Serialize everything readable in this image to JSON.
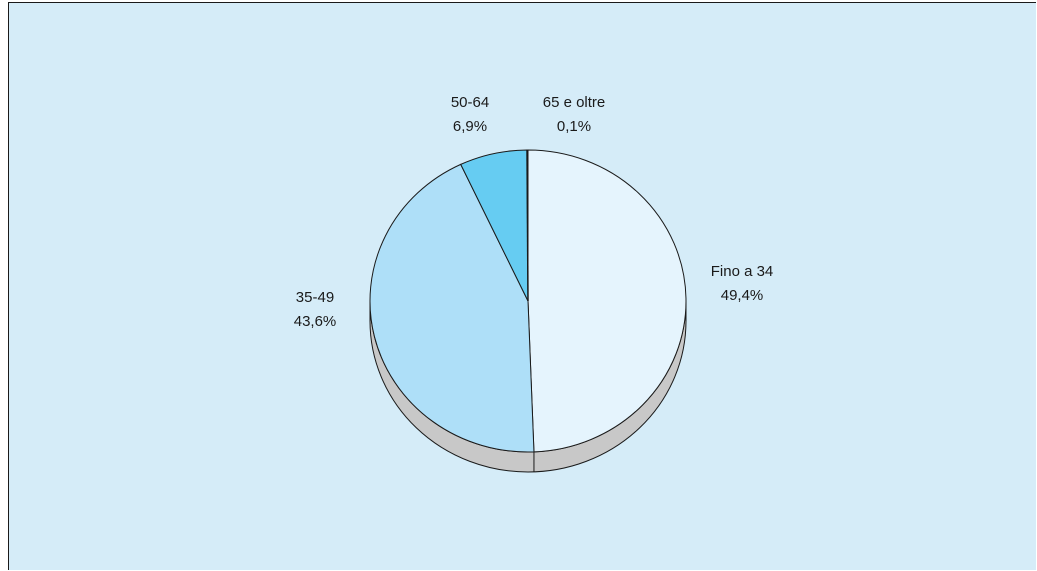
{
  "chart_data": {
    "type": "pie",
    "title": "",
    "slices": [
      {
        "label": "Fino a 34",
        "value": 49.4,
        "display": "49,4%",
        "color": "#e5f4fd"
      },
      {
        "label": "35-49",
        "value": 43.6,
        "display": "43,6%",
        "color": "#aedff8"
      },
      {
        "label": "50-64",
        "value": 6.9,
        "display": "6,9%",
        "color": "#66ccf2"
      },
      {
        "label": "65 e oltre",
        "value": 0.1,
        "display": "0,1%",
        "color": "#1e7fb8"
      }
    ],
    "start_angle": "12 o'clock",
    "direction": "clockwise",
    "style": "3d-tilted",
    "side_color": "#c8c8c8",
    "background_color": "#d5ecf8",
    "legend": "none"
  }
}
